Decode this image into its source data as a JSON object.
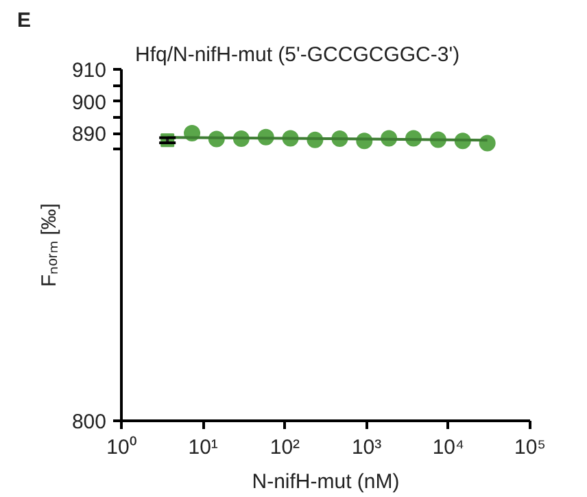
{
  "chart_data": {
    "type": "scatter",
    "title": "Hfq/N-nifH-mut (5'-GCCGCGGC-3')",
    "xlabel": "N-nifH-mut (nM)",
    "ylabel": "Fₙₒᵣₘ [‰]",
    "annotations": [
      "E"
    ],
    "log": "x",
    "grid": false,
    "marker": "circle",
    "xlim": [
      1,
      100000
    ],
    "xticks": [
      {
        "value": 1,
        "label": "10⁰"
      },
      {
        "value": 10,
        "label": "10¹"
      },
      {
        "value": 100,
        "label": "10²"
      },
      {
        "value": 1000,
        "label": "10³"
      },
      {
        "value": 10000,
        "label": "10⁴"
      },
      {
        "value": 100000,
        "label": "10⁵"
      }
    ],
    "ylim": [
      800,
      910
    ],
    "yticks": [
      800,
      {
        "value": 885,
        "label": null
      },
      890,
      {
        "value": 895,
        "label": null
      },
      900,
      {
        "value": 905,
        "label": null
      },
      910
    ],
    "series": [
      {
        "color": "#5aa64a",
        "marker": "square",
        "x": [
          3.66
        ],
        "values": [
          887.8
        ],
        "errors": [
          0.8
        ]
      },
      {
        "color": "#5aa64a",
        "x": [
          7.32,
          14.6,
          29.3,
          58.6,
          117,
          234,
          469,
          938,
          1875,
          3750,
          7500,
          15000,
          30000
        ],
        "values": [
          890.0,
          888.2,
          888.3,
          888.8,
          888.4,
          887.9,
          888.3,
          887.6,
          888.4,
          888.4,
          888.0,
          887.6,
          886.9
        ]
      },
      {
        "type": "line",
        "marker": "none",
        "color": "#3e7d33",
        "x": [
          3.66,
          100,
          1000,
          30000
        ],
        "values": [
          888.7,
          888.4,
          888.2,
          887.8
        ]
      }
    ]
  }
}
